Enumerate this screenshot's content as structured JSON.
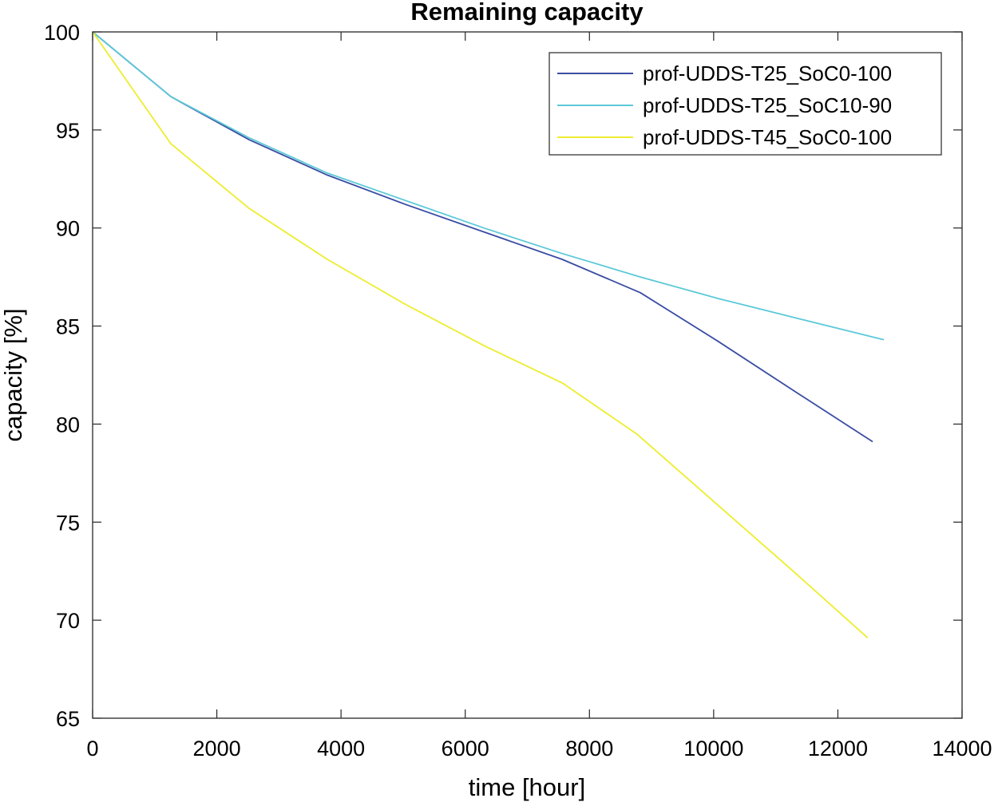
{
  "chart_data": {
    "type": "line",
    "title": "Remaining capacity",
    "xlabel": "time [hour]",
    "ylabel": "capacity [%]",
    "xlim": [
      0,
      14000
    ],
    "ylim": [
      65,
      100
    ],
    "xticks": [
      0,
      2000,
      4000,
      6000,
      8000,
      10000,
      12000,
      14000
    ],
    "yticks": [
      65,
      70,
      75,
      80,
      85,
      90,
      95,
      100
    ],
    "grid": false,
    "legend_position": "top-right",
    "series": [
      {
        "name": "prof-UDDS-T25_SoC0-100",
        "color": "#3a4da3",
        "x": [
          0,
          1260,
          2520,
          3780,
          5040,
          6300,
          7560,
          8820,
          10080,
          11340,
          12560
        ],
        "y": [
          100,
          96.7,
          94.5,
          92.7,
          91.2,
          89.8,
          88.4,
          86.7,
          84.2,
          81.6,
          79.1
        ]
      },
      {
        "name": "prof-UDDS-T25_SoC10-90",
        "color": "#5cc9d8",
        "x": [
          0,
          1260,
          2520,
          3780,
          5040,
          6300,
          7560,
          8820,
          10080,
          11340,
          12740
        ],
        "y": [
          100,
          96.7,
          94.6,
          92.8,
          91.4,
          90.0,
          88.7,
          87.5,
          86.4,
          85.4,
          84.3
        ]
      },
      {
        "name": "prof-UDDS-T45_SoC0-100",
        "color": "#eded2e",
        "x": [
          0,
          1260,
          2520,
          3780,
          5040,
          6300,
          7560,
          8760,
          10020,
          11280,
          12480
        ],
        "y": [
          100,
          94.3,
          91.0,
          88.4,
          86.1,
          84.0,
          82.1,
          79.5,
          76.0,
          72.5,
          69.1
        ]
      }
    ]
  }
}
